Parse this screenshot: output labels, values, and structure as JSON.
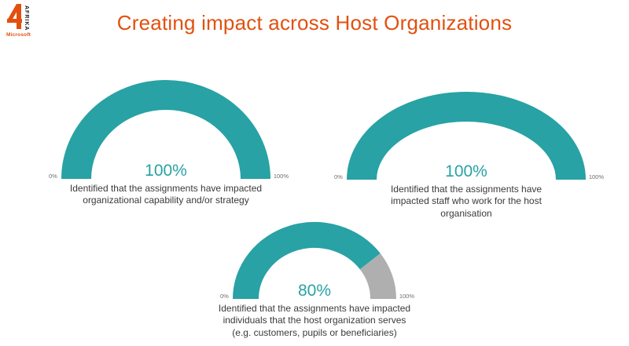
{
  "page": {
    "title": "Creating impact across Host Organizations"
  },
  "logo": {
    "brand_vertical": "AFRIKA",
    "brand_name": "Microsoft"
  },
  "theme": {
    "accent_orange": "#E2500F",
    "teal": "#28A2A4",
    "gauge_rest": "#AFAFAF",
    "caption_text": "#3A3A3A",
    "tick_text": "#6E6E6E"
  },
  "chart_data": {
    "type": "gauge",
    "unit": "percent",
    "min": 0,
    "max": 100,
    "layout_hint": "three half-donut gauges: two on top row, one bottom center",
    "colors": {
      "value": "#28A2A4",
      "rest": "#AFAFAF"
    },
    "gauges": [
      {
        "value": 100,
        "value_label": "100%",
        "min_label": "0%",
        "max_label": "100%",
        "caption": "Identified that the assignments have impacted organizational capability and/or strategy",
        "caption_lines": [
          "Identified that the assignments have impacted",
          "organizational capability and/or strategy"
        ]
      },
      {
        "value": 100,
        "value_label": "100%",
        "min_label": "0%",
        "max_label": "100%",
        "caption": "Identified that the assignments have impacted staff who work for the host organisation",
        "caption_lines": [
          "Identified that the assignments have",
          "impacted staff who work for the host",
          "organisation"
        ]
      },
      {
        "value": 80,
        "value_label": "80%",
        "min_label": "0%",
        "max_label": "100%",
        "caption": "Identified that the assignments have impacted individuals that the host organization serves (e.g. customers, pupils or beneficiaries)",
        "caption_lines": [
          "Identified that the assignments have impacted",
          "individuals that the host organization serves",
          "(e.g. customers, pupils or beneficiaries)"
        ]
      }
    ]
  }
}
